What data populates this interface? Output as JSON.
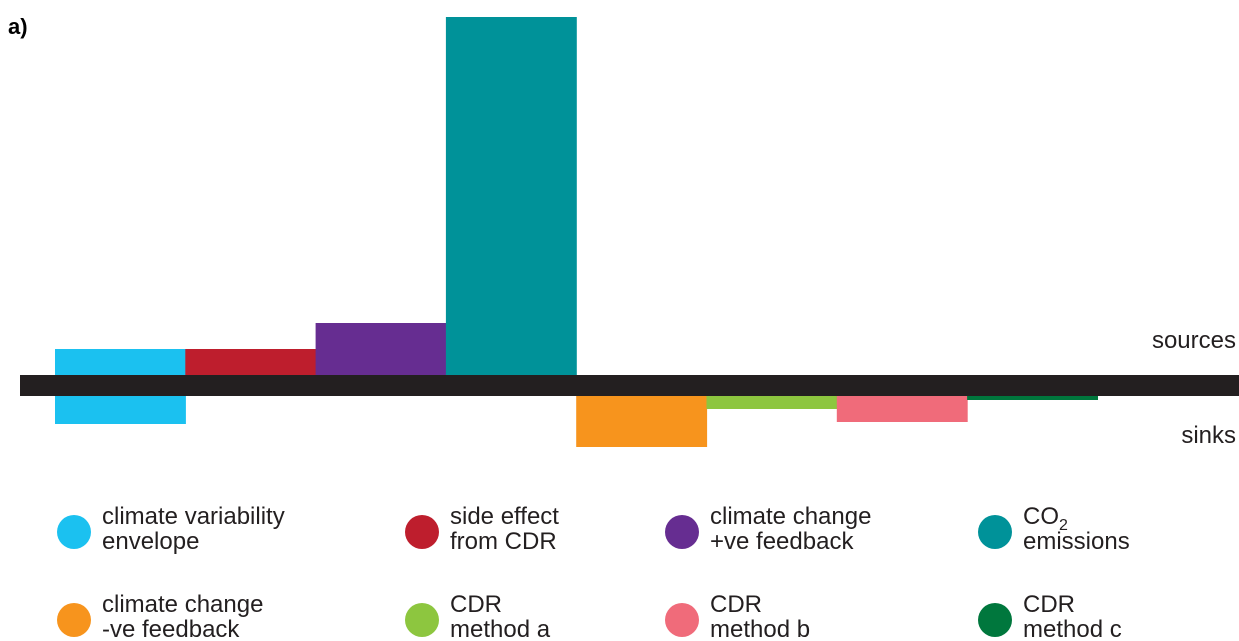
{
  "panel_label": "a)",
  "chart_data": {
    "type": "bar",
    "baseline_label_above": "sources",
    "baseline_label_below": "sinks",
    "series": [
      {
        "name": "climate variability envelope",
        "color": "#1bc1f0",
        "values": [
          26,
          -28
        ]
      },
      {
        "name": "side effect from CDR",
        "color": "#be1e2d",
        "values": [
          26,
          0
        ]
      },
      {
        "name": "climate change +ve feedback",
        "color": "#662d91",
        "values": [
          52,
          0
        ]
      },
      {
        "name": "CO2 emissions",
        "color": "#009299",
        "values": [
          358,
          0
        ]
      },
      {
        "name": "climate change -ve feedback",
        "color": "#f7941d",
        "values": [
          0,
          -51
        ]
      },
      {
        "name": "CDR method a",
        "color": "#8dc63f",
        "values": [
          0,
          -13
        ]
      },
      {
        "name": "CDR method b",
        "color": "#f06b7a",
        "values": [
          0,
          -26
        ]
      },
      {
        "name": "CDR method c",
        "color": "#00773d",
        "values": [
          0,
          -4
        ]
      }
    ]
  },
  "legend": [
    {
      "lines": [
        "climate variability",
        "envelope"
      ],
      "color": "#1bc1f0"
    },
    {
      "lines": [
        "side effect",
        "from CDR"
      ],
      "color": "#be1e2d"
    },
    {
      "lines": [
        "climate change",
        "+ve feedback"
      ],
      "color": "#662d91"
    },
    {
      "lines": [
        "CO",
        "emissions"
      ],
      "subscript": "2",
      "color": "#009299"
    },
    {
      "lines": [
        "climate change",
        "-ve feedback"
      ],
      "color": "#f7941d"
    },
    {
      "lines": [
        "CDR",
        "method a"
      ],
      "color": "#8dc63f"
    },
    {
      "lines": [
        "CDR",
        "method b"
      ],
      "color": "#f06b7a"
    },
    {
      "lines": [
        "CDR",
        "method c"
      ],
      "color": "#00773d"
    }
  ]
}
